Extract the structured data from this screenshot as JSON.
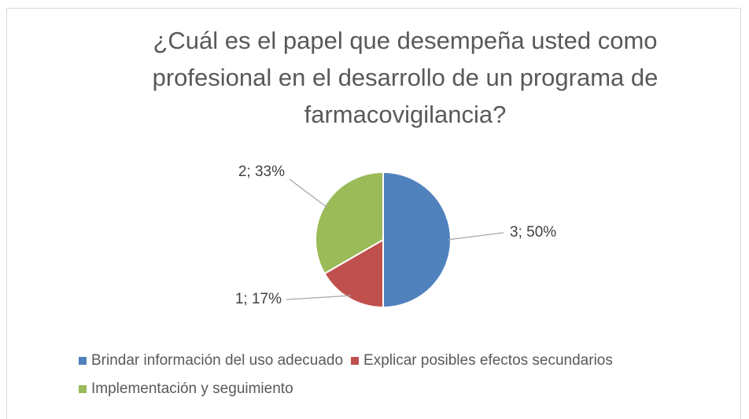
{
  "chart_data": {
    "type": "pie",
    "title": "¿Cuál es el papel que desempeña usted como profesional en el desarrollo de un programa de farmacovigilancia?",
    "categories": [
      "Brindar información del uso adecuado",
      "Explicar posibles efectos secundarios",
      "Implementación y seguimiento"
    ],
    "values": [
      3,
      1,
      2
    ],
    "value_labels": [
      "3; 50%",
      "1; 17%",
      "2; 33%"
    ],
    "colors": [
      "#4f81bd",
      "#c0504d",
      "#9bbb59"
    ],
    "legend": "bottom"
  }
}
